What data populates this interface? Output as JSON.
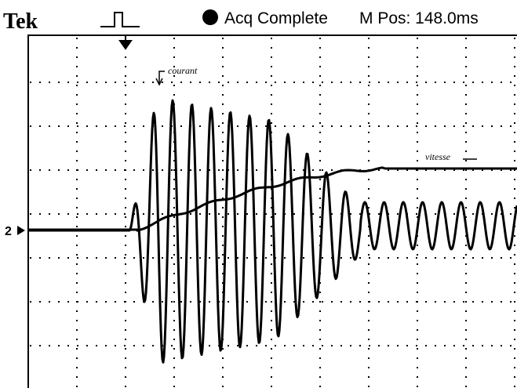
{
  "header": {
    "brand": "Tek",
    "status": "Acq Complete",
    "position": "M Pos: 148.0ms"
  },
  "channel_marker": "2",
  "annotations": {
    "current": "courant",
    "speed": "vitesse"
  }
}
